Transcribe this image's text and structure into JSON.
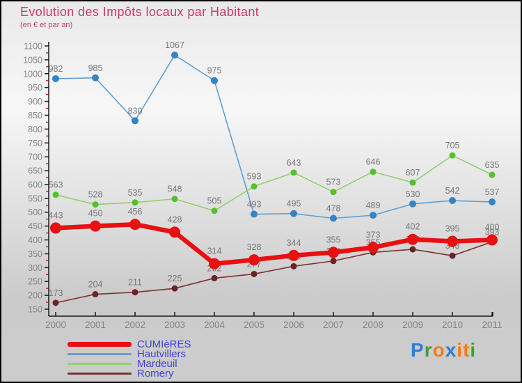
{
  "header": {
    "title": "Evolution des Impôts locaux par Habitant",
    "subtitle": "(en € et par an)"
  },
  "chart_data": {
    "type": "line",
    "title": "Evolution des Impôts locaux par Habitant",
    "subtitle": "(en € et par an)",
    "x": [
      2000,
      2001,
      2002,
      2003,
      2004,
      2005,
      2006,
      2007,
      2008,
      2009,
      2010,
      2011
    ],
    "series": [
      {
        "name": "CUMIèRES",
        "color": "#e81010",
        "point_color": "#e81010",
        "width": 6.5,
        "radius": 8,
        "label_dy": 14,
        "values": [
          443,
          450,
          456,
          428,
          314,
          328,
          344,
          355,
          373,
          402,
          395,
          400
        ]
      },
      {
        "name": "Hautvillers",
        "color": "#5f9fd4",
        "point_color": "#3583c4",
        "width": 1.6,
        "radius": 5,
        "label_dy": 10,
        "values": [
          982,
          985,
          830,
          1067,
          975,
          493,
          495,
          478,
          489,
          530,
          542,
          537
        ]
      },
      {
        "name": "Mardeuil",
        "color": "#92d06c",
        "point_color": "#54c02a",
        "width": 1.6,
        "radius": 4.5,
        "label_dy": 10,
        "values": [
          563,
          528,
          535,
          548,
          505,
          593,
          643,
          573,
          646,
          607,
          705,
          635
        ]
      },
      {
        "name": "Romery",
        "color": "#7a3232",
        "point_color": "#682525",
        "width": 1.6,
        "radius": 4.5,
        "label_dy": 10,
        "values": [
          173,
          204,
          211,
          225,
          262,
          277,
          305,
          324,
          355,
          366,
          343,
          393
        ]
      }
    ],
    "draw_order": [
      1,
      2,
      3,
      0
    ],
    "ylim": [
      150,
      1100
    ],
    "y_major_step": 50,
    "y_minor_step": 25,
    "grid": false,
    "legend_position": "bottom-left",
    "axis_color": "#1a1a1a",
    "minor_tick_color": "#cc0000",
    "tick_label_color": "#858585",
    "label_color": "#777777"
  },
  "legend": {
    "text_color": "#4143d7"
  },
  "logo": {
    "letters": [
      {
        "ch": "P",
        "color": "#2f7bd6"
      },
      {
        "ch": "r",
        "color": "#3da32f"
      },
      {
        "ch": "o",
        "color": "#f07d1c"
      },
      {
        "ch": "x",
        "color": "#2f7bd6"
      },
      {
        "ch": "i",
        "color": "#f07d1c"
      },
      {
        "ch": "t",
        "color": "#f07d1c"
      },
      {
        "ch": "i",
        "color": "#3da32f"
      }
    ]
  }
}
